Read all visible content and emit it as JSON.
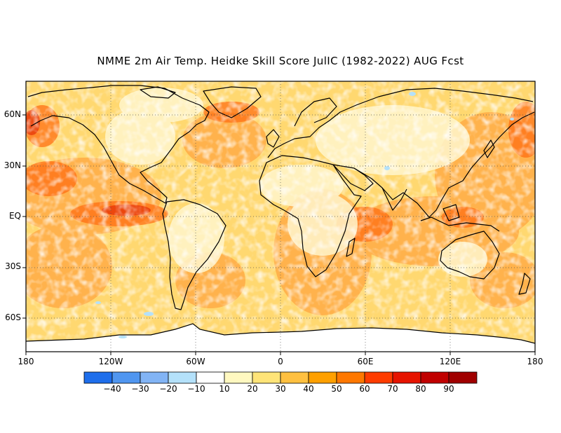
{
  "title": "NMME 2m Air Temp. Heidke Skill Score JulIC (1982-2022) AUG Fcst",
  "map": {
    "lat_range": [
      -80,
      80
    ],
    "lon_range": [
      -180,
      180
    ],
    "lat_ticks": [
      {
        "value": 60,
        "label": "60N"
      },
      {
        "value": 30,
        "label": "30N"
      },
      {
        "value": 0,
        "label": "EQ"
      },
      {
        "value": -30,
        "label": "30S"
      },
      {
        "value": -60,
        "label": "60S"
      }
    ],
    "lon_ticks": [
      {
        "value": -180,
        "label": "180"
      },
      {
        "value": -120,
        "label": "120W"
      },
      {
        "value": -60,
        "label": "60W"
      },
      {
        "value": 0,
        "label": "0"
      },
      {
        "value": 60,
        "label": "60E"
      },
      {
        "value": 120,
        "label": "120E"
      },
      {
        "value": 180,
        "label": "180"
      }
    ],
    "gridlines": "dotted",
    "coastline_color": "#000000"
  },
  "colorbar": {
    "bounds": [
      -50,
      -40,
      -30,
      -20,
      -10,
      10,
      20,
      30,
      40,
      50,
      60,
      70,
      80,
      90,
      100
    ],
    "labels": [
      "-40",
      "-30",
      "-20",
      "-10",
      "10",
      "20",
      "30",
      "40",
      "50",
      "60",
      "70",
      "80",
      "90"
    ],
    "colors": [
      "#1e6eeb",
      "#5096f0",
      "#82b4f5",
      "#b4e1fa",
      "#ffffff",
      "#fff8c0",
      "#ffe478",
      "#ffc040",
      "#ffa000",
      "#ff7800",
      "#ff3c00",
      "#e61400",
      "#c00000",
      "#a00000"
    ]
  }
}
